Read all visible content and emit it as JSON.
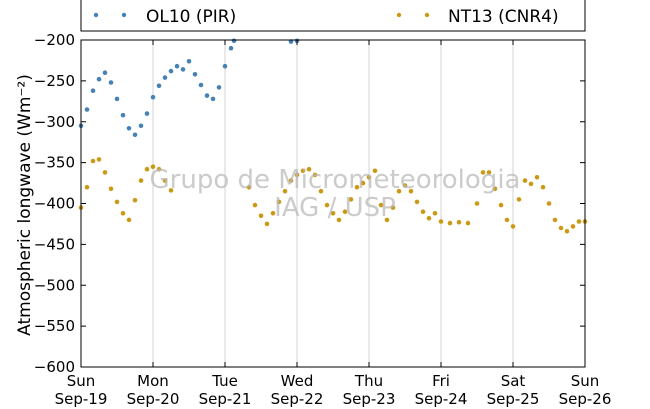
{
  "chart_data": {
    "type": "scatter",
    "ylabel": "Atmospheric longwave (Wm⁻²)",
    "ylim": [
      -600,
      -200
    ],
    "xlim": [
      "2021-09-19",
      "2021-09-26"
    ],
    "yticks": [
      -200,
      -250,
      -300,
      -350,
      -400,
      -450,
      -500,
      -550,
      -600
    ],
    "xticks": [
      {
        "weekday": "Sun",
        "date": "Sep-19"
      },
      {
        "weekday": "Mon",
        "date": "Sep-20"
      },
      {
        "weekday": "Tue",
        "date": "Sep-21"
      },
      {
        "weekday": "Wed",
        "date": "Sep-22"
      },
      {
        "weekday": "Thu",
        "date": "Sep-23"
      },
      {
        "weekday": "Fri",
        "date": "Sep-24"
      },
      {
        "weekday": "Sat",
        "date": "Sep-25"
      },
      {
        "weekday": "Sun",
        "date": "Sep-26"
      }
    ],
    "grid": "vertical",
    "legend_position": "top",
    "watermark": [
      "Grupo de Micrometeorologia",
      "IAG / USP"
    ],
    "series": [
      {
        "name": "OL10 (PIR)",
        "color": "#4682b4",
        "points": [
          [
            "2021-09-19T00:00",
            -305
          ],
          [
            "2021-09-19T02:00",
            -285
          ],
          [
            "2021-09-19T04:00",
            -262
          ],
          [
            "2021-09-19T06:00",
            -248
          ],
          [
            "2021-09-19T08:00",
            -240
          ],
          [
            "2021-09-19T10:00",
            -252
          ],
          [
            "2021-09-19T12:00",
            -272
          ],
          [
            "2021-09-19T14:00",
            -292
          ],
          [
            "2021-09-19T16:00",
            -308
          ],
          [
            "2021-09-19T18:00",
            -316
          ],
          [
            "2021-09-19T20:00",
            -305
          ],
          [
            "2021-09-19T22:00",
            -290
          ],
          [
            "2021-09-20T00:00",
            -270
          ],
          [
            "2021-09-20T02:00",
            -256
          ],
          [
            "2021-09-20T04:00",
            -246
          ],
          [
            "2021-09-20T06:00",
            -238
          ],
          [
            "2021-09-20T08:00",
            -232
          ],
          [
            "2021-09-20T10:00",
            -236
          ],
          [
            "2021-09-20T12:00",
            -226
          ],
          [
            "2021-09-20T14:00",
            -242
          ],
          [
            "2021-09-20T16:00",
            -255
          ],
          [
            "2021-09-20T18:00",
            -268
          ],
          [
            "2021-09-20T20:00",
            -272
          ],
          [
            "2021-09-20T22:00",
            -258
          ],
          [
            "2021-09-21T00:00",
            -232
          ],
          [
            "2021-09-21T02:00",
            -210
          ],
          [
            "2021-09-21T03:00",
            -201
          ],
          [
            "2021-09-21T22:00",
            -202
          ],
          [
            "2021-09-22T00:00",
            -201
          ]
        ]
      },
      {
        "name": "NT13 (CNR4)",
        "color": "#cc9914",
        "points": [
          [
            "2021-09-19T00:00",
            -405
          ],
          [
            "2021-09-19T02:00",
            -380
          ],
          [
            "2021-09-19T04:00",
            -348
          ],
          [
            "2021-09-19T06:00",
            -346
          ],
          [
            "2021-09-19T08:00",
            -362
          ],
          [
            "2021-09-19T10:00",
            -382
          ],
          [
            "2021-09-19T12:00",
            -398
          ],
          [
            "2021-09-19T14:00",
            -412
          ],
          [
            "2021-09-19T16:00",
            -420
          ],
          [
            "2021-09-19T18:00",
            -396
          ],
          [
            "2021-09-19T20:00",
            -372
          ],
          [
            "2021-09-19T22:00",
            -358
          ],
          [
            "2021-09-20T00:00",
            -355
          ],
          [
            "2021-09-20T02:00",
            -358
          ],
          [
            "2021-09-20T04:00",
            -372
          ],
          [
            "2021-09-20T06:00",
            -384
          ],
          [
            "2021-09-21T08:00",
            -380
          ],
          [
            "2021-09-21T10:00",
            -402
          ],
          [
            "2021-09-21T12:00",
            -415
          ],
          [
            "2021-09-21T14:00",
            -425
          ],
          [
            "2021-09-21T16:00",
            -412
          ],
          [
            "2021-09-21T18:00",
            -398
          ],
          [
            "2021-09-21T20:00",
            -385
          ],
          [
            "2021-09-21T22:00",
            -372
          ],
          [
            "2021-09-22T00:00",
            -365
          ],
          [
            "2021-09-22T02:00",
            -360
          ],
          [
            "2021-09-22T04:00",
            -358
          ],
          [
            "2021-09-22T06:00",
            -365
          ],
          [
            "2021-09-22T08:00",
            -385
          ],
          [
            "2021-09-22T10:00",
            -402
          ],
          [
            "2021-09-22T12:00",
            -412
          ],
          [
            "2021-09-22T14:00",
            -420
          ],
          [
            "2021-09-22T16:00",
            -410
          ],
          [
            "2021-09-22T18:00",
            -395
          ],
          [
            "2021-09-22T20:00",
            -380
          ],
          [
            "2021-09-22T22:00",
            -375
          ],
          [
            "2021-09-23T00:00",
            -368
          ],
          [
            "2021-09-23T02:00",
            -360
          ],
          [
            "2021-09-23T04:00",
            -402
          ],
          [
            "2021-09-23T06:00",
            -420
          ],
          [
            "2021-09-23T08:00",
            -405
          ],
          [
            "2021-09-23T10:00",
            -385
          ],
          [
            "2021-09-23T12:00",
            -378
          ],
          [
            "2021-09-23T14:00",
            -385
          ],
          [
            "2021-09-23T16:00",
            -398
          ],
          [
            "2021-09-23T18:00",
            -410
          ],
          [
            "2021-09-23T20:00",
            -418
          ],
          [
            "2021-09-23T22:00",
            -412
          ],
          [
            "2021-09-24T00:00",
            -422
          ],
          [
            "2021-09-24T03:00",
            -424
          ],
          [
            "2021-09-24T06:00",
            -423
          ],
          [
            "2021-09-24T09:00",
            -424
          ],
          [
            "2021-09-24T12:00",
            -400
          ],
          [
            "2021-09-24T14:00",
            -362
          ],
          [
            "2021-09-24T16:00",
            -362
          ],
          [
            "2021-09-24T18:00",
            -382
          ],
          [
            "2021-09-24T20:00",
            -402
          ],
          [
            "2021-09-24T22:00",
            -420
          ],
          [
            "2021-09-25T00:00",
            -428
          ],
          [
            "2021-09-25T02:00",
            -395
          ],
          [
            "2021-09-25T04:00",
            -372
          ],
          [
            "2021-09-25T06:00",
            -376
          ],
          [
            "2021-09-25T08:00",
            -368
          ],
          [
            "2021-09-25T10:00",
            -380
          ],
          [
            "2021-09-25T12:00",
            -400
          ],
          [
            "2021-09-25T14:00",
            -420
          ],
          [
            "2021-09-25T16:00",
            -430
          ],
          [
            "2021-09-25T18:00",
            -434
          ],
          [
            "2021-09-25T20:00",
            -428
          ],
          [
            "2021-09-25T22:00",
            -422
          ],
          [
            "2021-09-26T00:00",
            -422
          ]
        ]
      }
    ]
  }
}
